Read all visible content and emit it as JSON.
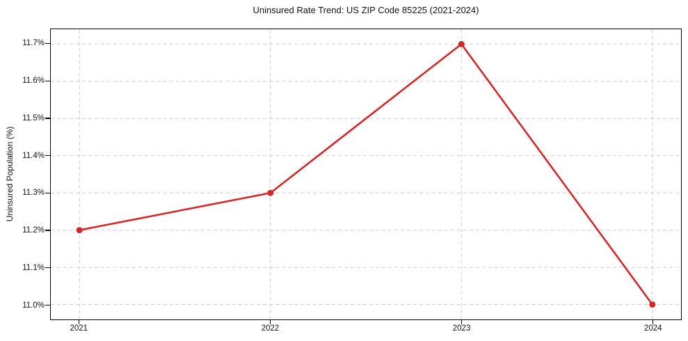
{
  "chart_data": {
    "type": "line",
    "title": "Uninsured Rate Trend: US ZIP Code 85225 (2021-2024)",
    "xlabel": "",
    "ylabel": "Uninsured Population (%)",
    "series_name": "Uninsured Rate",
    "x": [
      2021,
      2022,
      2023,
      2024
    ],
    "values": [
      11.2,
      11.3,
      11.7,
      11.0
    ],
    "xlim": [
      2020.85,
      2024.15
    ],
    "ylim": [
      10.96,
      11.74
    ],
    "xticks": [
      {
        "value": 2021,
        "label": "2021"
      },
      {
        "value": 2022,
        "label": "2022"
      },
      {
        "value": 2023,
        "label": "2023"
      },
      {
        "value": 2024,
        "label": "2024"
      }
    ],
    "yticks": [
      {
        "value": 11.0,
        "label": "11.0%"
      },
      {
        "value": 11.1,
        "label": "11.1%"
      },
      {
        "value": 11.2,
        "label": "11.2%"
      },
      {
        "value": 11.3,
        "label": "11.3%"
      },
      {
        "value": 11.4,
        "label": "11.4%"
      },
      {
        "value": 11.5,
        "label": "11.5%"
      },
      {
        "value": 11.6,
        "label": "11.6%"
      },
      {
        "value": 11.7,
        "label": "11.7%"
      }
    ],
    "grid": true,
    "legend": false,
    "line_color": "#d62728",
    "marker": "circle",
    "grid_color": "#cccccc",
    "spine_color": "#000000",
    "background": "#ffffff"
  }
}
